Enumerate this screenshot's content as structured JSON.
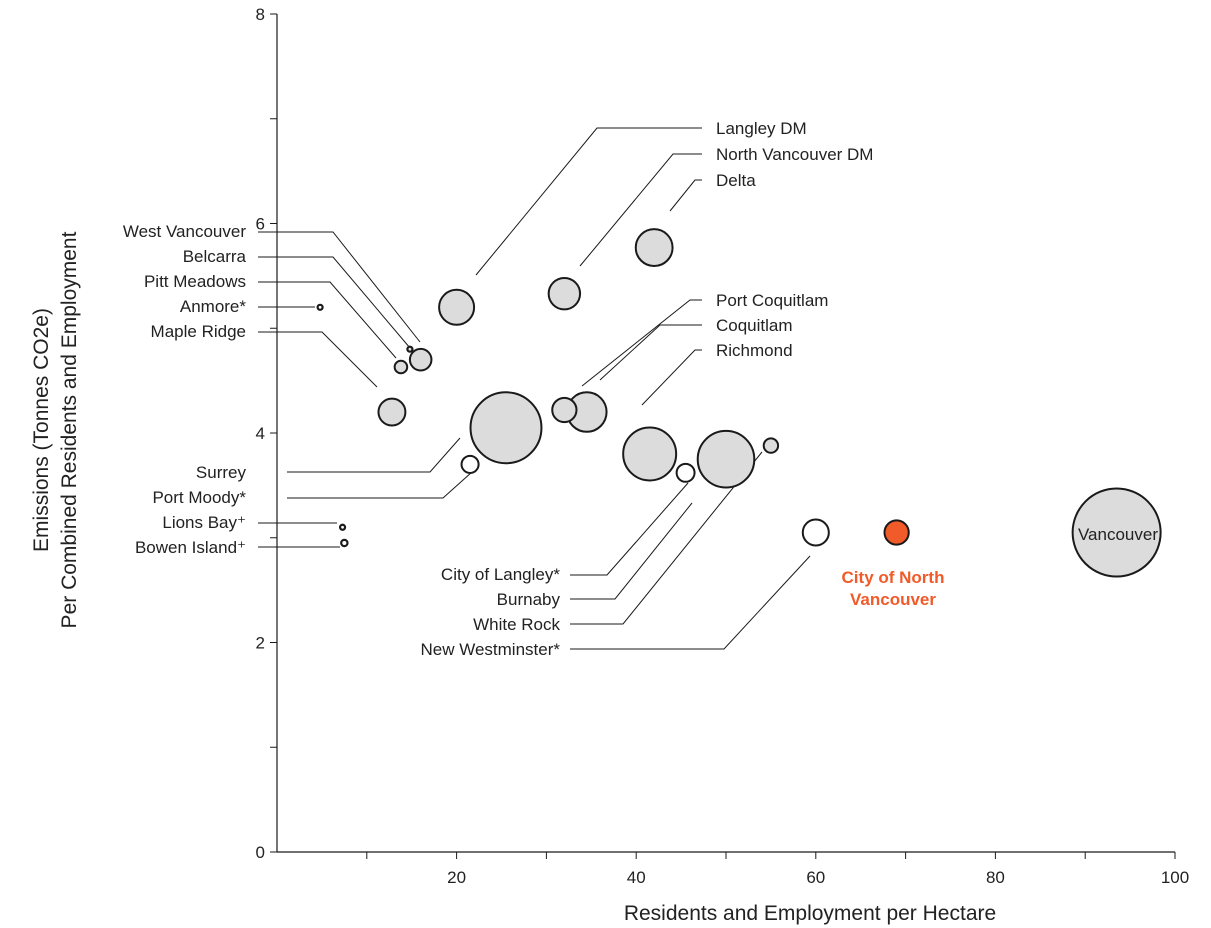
{
  "chart_data": {
    "type": "scatter",
    "xlabel": "Residents and Employment per Hectare",
    "ylabel_line1": "Emissions (Tonnes CO2e)",
    "ylabel_line2": "Per Combined Residents and Employment",
    "xlim": [
      0,
      100
    ],
    "ylim": [
      0,
      8
    ],
    "x_ticks": [
      "20",
      "40",
      "60",
      "80",
      "100"
    ],
    "y_ticks": [
      "0",
      "2",
      "4",
      "6",
      "8"
    ],
    "grid": false,
    "colors": {
      "default": "#dcdcdc",
      "white": "#ffffff",
      "highlight": "#f15a29",
      "stroke": "#1a1a1a"
    },
    "points": [
      {
        "name": "Vancouver",
        "x": 93.5,
        "y": 3.05,
        "size": 9.8,
        "fill": "default",
        "label": "Vancouver"
      },
      {
        "name": "Surrey",
        "x": 25.5,
        "y": 4.05,
        "size": 7.9,
        "fill": "default",
        "label": "Surrey"
      },
      {
        "name": "Richmond",
        "x": 41.5,
        "y": 3.8,
        "size": 5.9,
        "fill": "default",
        "label": "Richmond"
      },
      {
        "name": "Burnaby",
        "x": 50,
        "y": 3.75,
        "size": 6.3,
        "fill": "default",
        "label": "Burnaby"
      },
      {
        "name": "Coquitlam",
        "x": 34.5,
        "y": 4.2,
        "size": 4.4,
        "fill": "default",
        "label": "Coquitlam"
      },
      {
        "name": "Port Coquitlam",
        "x": 32,
        "y": 4.22,
        "size": 2.7,
        "fill": "default",
        "label": "Port Coquitlam"
      },
      {
        "name": "Langley DM",
        "x": 20,
        "y": 5.2,
        "size": 3.9,
        "fill": "default",
        "label": "Langley DM"
      },
      {
        "name": "North Vancouver DM",
        "x": 32,
        "y": 5.33,
        "size": 3.5,
        "fill": "default",
        "label": "North Vancouver DM"
      },
      {
        "name": "Delta",
        "x": 42,
        "y": 5.77,
        "size": 4.1,
        "fill": "default",
        "label": "Delta"
      },
      {
        "name": "West Vancouver",
        "x": 16,
        "y": 4.7,
        "size": 2.4,
        "fill": "default",
        "label": "West Vancouver"
      },
      {
        "name": "Belcarra",
        "x": 14.8,
        "y": 4.8,
        "size": 0.3,
        "fill": "default",
        "label": "Belcarra"
      },
      {
        "name": "Pitt Meadows",
        "x": 13.8,
        "y": 4.63,
        "size": 1.4,
        "fill": "default",
        "label": "Pitt Meadows"
      },
      {
        "name": "Anmore",
        "x": 4.8,
        "y": 5.2,
        "size": 0.45,
        "fill": "white",
        "label": "Anmore*"
      },
      {
        "name": "Maple Ridge",
        "x": 12.8,
        "y": 4.2,
        "size": 3.0,
        "fill": "default",
        "label": "Maple Ridge"
      },
      {
        "name": "Port Moody",
        "x": 21.5,
        "y": 3.7,
        "size": 1.9,
        "fill": "white",
        "label": "Port Moody*"
      },
      {
        "name": "Lions Bay",
        "x": 7.3,
        "y": 3.1,
        "size": 0.4,
        "fill": "white",
        "label": "Lions Bay⁺"
      },
      {
        "name": "Bowen Island",
        "x": 7.5,
        "y": 2.95,
        "size": 0.7,
        "fill": "white",
        "label": "Bowen Island⁺"
      },
      {
        "name": "City of Langley",
        "x": 45.5,
        "y": 3.62,
        "size": 2.0,
        "fill": "white",
        "label": "City of Langley*"
      },
      {
        "name": "White Rock",
        "x": 55,
        "y": 3.88,
        "size": 1.6,
        "fill": "default",
        "label": "White Rock"
      },
      {
        "name": "New Westminster",
        "x": 60,
        "y": 3.05,
        "size": 2.9,
        "fill": "white",
        "label": "New Westminster*"
      },
      {
        "name": "City of North Vancouver",
        "x": 69,
        "y": 3.05,
        "size": 2.7,
        "fill": "highlight",
        "label": "City of North\nVancouver"
      }
    ]
  }
}
